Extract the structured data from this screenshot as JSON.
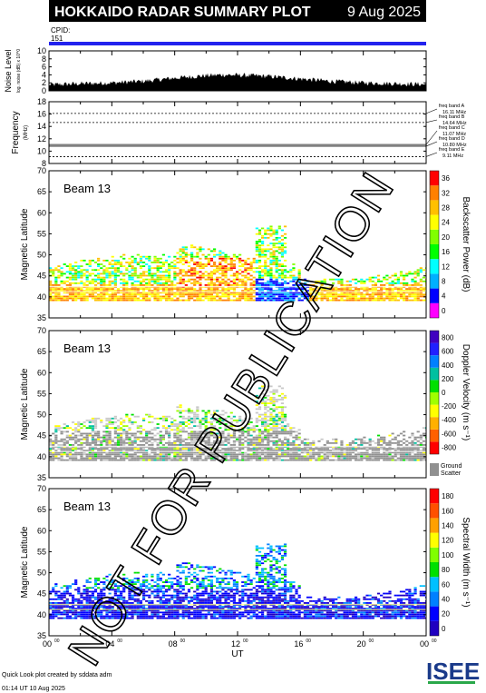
{
  "header": {
    "title": "HOKKAIDO RADAR SUMMARY PLOT",
    "date": "9 Aug 2025",
    "cpid_label": "CPID:",
    "cpid_value": "151"
  },
  "footer": {
    "line1": "Quick Look plot created by sddata adm",
    "line2": "01:14 UT 10 Aug 2025",
    "logo_text": "ISEE"
  },
  "watermark": "NOT FOR PUBLICATION",
  "colors": {
    "cpid_bar": "#2222ee",
    "ground_scatter": "#909090",
    "freq_line": "#000000"
  },
  "chart_data": [
    {
      "type": "area",
      "id": "noise",
      "ylabel": "Noise Level",
      "ylabel_small": "log. noise (dB) x 10^0",
      "ylim": [
        0,
        10
      ],
      "yticks": [
        "0",
        "2",
        "4",
        "6",
        "8",
        "10"
      ],
      "x": [
        0,
        2,
        4,
        6,
        8,
        10,
        11,
        12,
        13,
        14,
        16,
        18,
        20,
        22,
        24
      ],
      "values": [
        1.5,
        1.8,
        2.0,
        2.4,
        3.2,
        3.8,
        4.0,
        3.9,
        3.8,
        3.6,
        3.0,
        2.4,
        2.0,
        1.8,
        1.6
      ]
    },
    {
      "type": "line",
      "id": "frequency",
      "ylabel": "Frequency",
      "ylabel_small": "(MHz)",
      "ylim": [
        8,
        18
      ],
      "yticks": [
        "8",
        "10",
        "12",
        "14",
        "16",
        "18"
      ],
      "bands": [
        {
          "label": "freq band A",
          "value": "16.11 MHz",
          "y": 16.11
        },
        {
          "label": "freq band B",
          "value": "14.64 MHz",
          "y": 14.64
        },
        {
          "label": "freq band C",
          "value": "11.07 MHz",
          "y": 11.07
        },
        {
          "label": "freq band D",
          "value": "10.80 MHz",
          "y": 10.8
        },
        {
          "label": "freq band E",
          "value": "9.11 MHz",
          "y": 9.11
        }
      ]
    },
    {
      "type": "heatmap",
      "id": "power",
      "panel_label": "Beam 13",
      "ylabel": "Magnetic Latitude",
      "ylim": [
        35,
        70
      ],
      "yticks": [
        "35",
        "40",
        "45",
        "50",
        "55",
        "60",
        "65",
        "70"
      ],
      "colorbar_label": "Backscatter Power (dB)",
      "colorbar_ticks": [
        "0",
        "4",
        "8",
        "12",
        "16",
        "20",
        "24",
        "28",
        "32",
        "36"
      ]
    },
    {
      "type": "heatmap",
      "id": "velocity",
      "panel_label": "Beam 13",
      "ylabel": "Magnetic Latitude",
      "ylim": [
        35,
        70
      ],
      "yticks": [
        "35",
        "40",
        "45",
        "50",
        "55",
        "60",
        "65",
        "70"
      ],
      "colorbar_label": "Doppler Velocity (m s⁻¹)",
      "colorbar_ticks": [
        "-800",
        "-600",
        "-400",
        "-200",
        "0",
        "200",
        "400",
        "600",
        "800"
      ],
      "ground_label_1": "Ground",
      "ground_label_2": "Scatter"
    },
    {
      "type": "heatmap",
      "id": "width",
      "panel_label": "Beam 13",
      "ylabel": "Magnetic Latitude",
      "ylim": [
        35,
        70
      ],
      "yticks": [
        "35",
        "40",
        "45",
        "50",
        "55",
        "60",
        "65",
        "70"
      ],
      "colorbar_label": "Spectral Width (m s⁻¹)",
      "colorbar_ticks": [
        "0",
        "20",
        "40",
        "60",
        "80",
        "100",
        "120",
        "140",
        "160",
        "180"
      ]
    }
  ],
  "xaxis": {
    "label": "UT",
    "ticks": [
      "00",
      "04",
      "08",
      "12",
      "16",
      "20",
      "00"
    ],
    "tick_sup": "00",
    "xlim": [
      0,
      24
    ]
  }
}
